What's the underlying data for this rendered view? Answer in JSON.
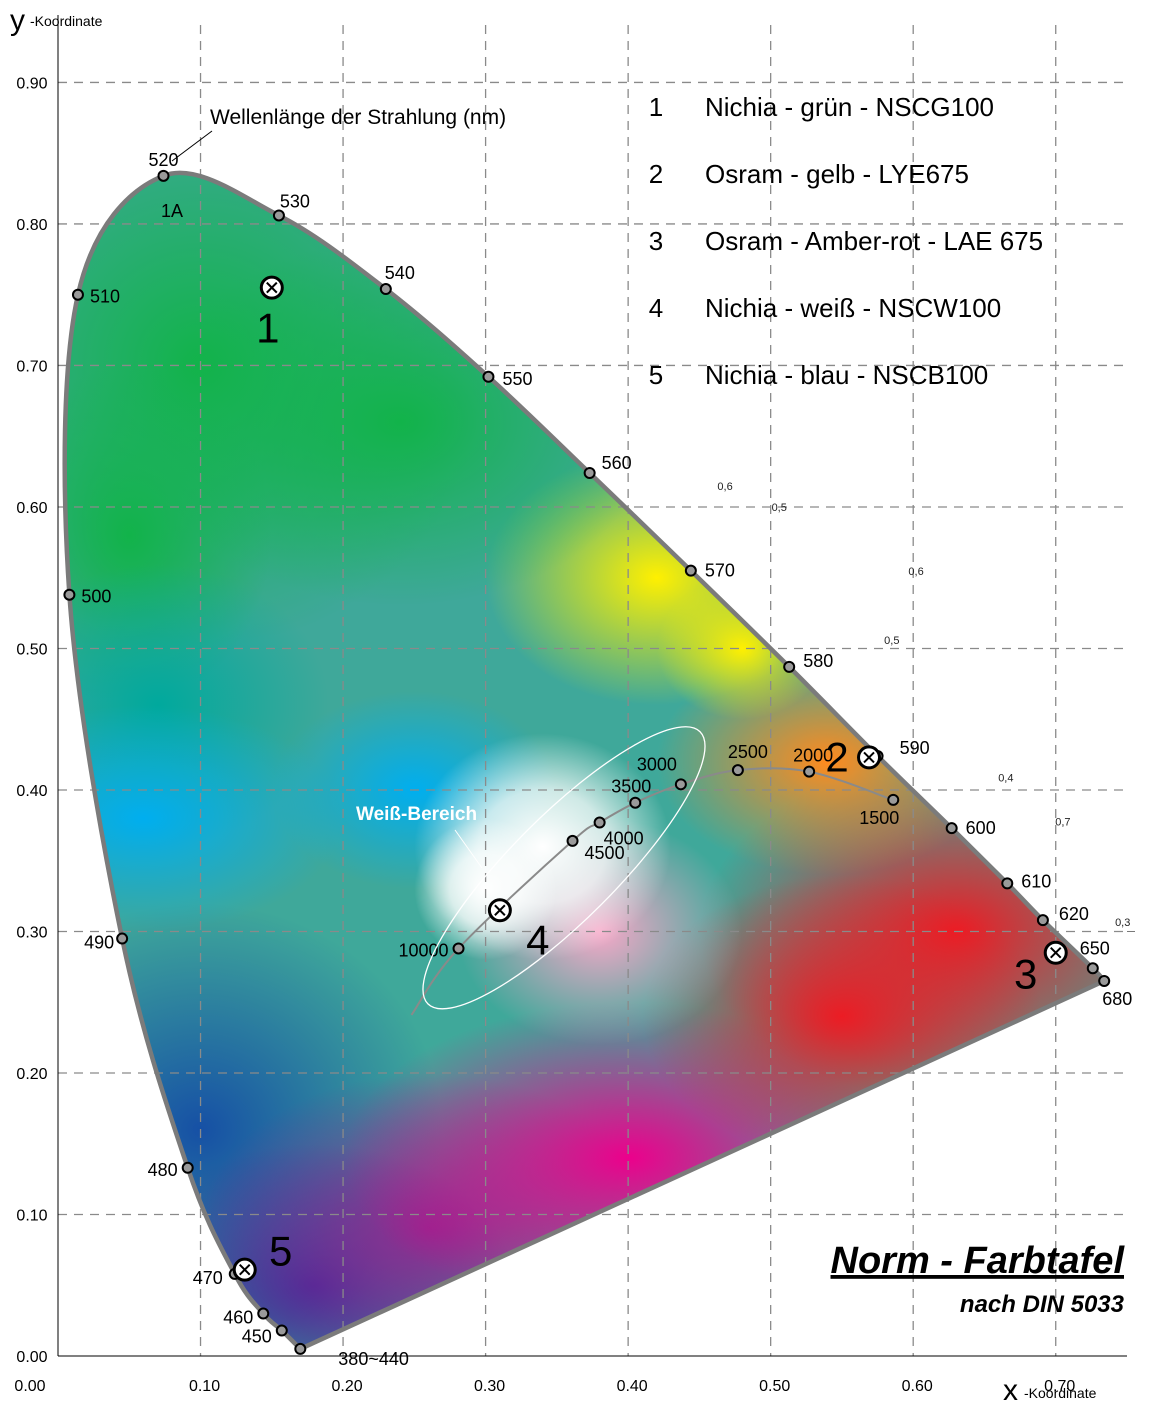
{
  "chart_data": {
    "type": "scatter",
    "title": "Norm - Farbtafel",
    "subtitle": "nach DIN 5033",
    "xlabel": {
      "big": "x",
      "small": "-Koordinate"
    },
    "ylabel": {
      "big": "y",
      "small": "-Koordinate"
    },
    "xlim": [
      0.0,
      0.75
    ],
    "ylim": [
      0.0,
      0.93
    ],
    "x_ticks": [
      "0.00",
      "0.10",
      "0.20",
      "0.30",
      "0.40",
      "0.50",
      "0.60",
      "0.70"
    ],
    "y_ticks": [
      "0.00",
      "0.10",
      "0.20",
      "0.30",
      "0.40",
      "0.50",
      "0.60",
      "0.70",
      "0.80",
      "0.90"
    ],
    "grid": true,
    "spectral_locus_annotation": "Wellenlänge der Strahlung (nm)",
    "spectral_locus": [
      {
        "label": "380~440",
        "x": 0.17,
        "y": 0.005
      },
      {
        "label": "450",
        "x": 0.157,
        "y": 0.018
      },
      {
        "label": "460",
        "x": 0.144,
        "y": 0.03
      },
      {
        "label": "470",
        "x": 0.124,
        "y": 0.058
      },
      {
        "label": "480",
        "x": 0.091,
        "y": 0.133
      },
      {
        "label": "490",
        "x": 0.045,
        "y": 0.295
      },
      {
        "label": "500",
        "x": 0.008,
        "y": 0.538
      },
      {
        "label": "510",
        "x": 0.014,
        "y": 0.75
      },
      {
        "label": "520",
        "x": 0.074,
        "y": 0.834
      },
      {
        "label": "530",
        "x": 0.155,
        "y": 0.806
      },
      {
        "label": "540",
        "x": 0.23,
        "y": 0.754
      },
      {
        "label": "550",
        "x": 0.302,
        "y": 0.692
      },
      {
        "label": "560",
        "x": 0.373,
        "y": 0.624
      },
      {
        "label": "570",
        "x": 0.444,
        "y": 0.555
      },
      {
        "label": "580",
        "x": 0.513,
        "y": 0.487
      },
      {
        "label": "590",
        "x": 0.575,
        "y": 0.424
      },
      {
        "label": "600",
        "x": 0.627,
        "y": 0.373
      },
      {
        "label": "610",
        "x": 0.666,
        "y": 0.334
      },
      {
        "label": "620",
        "x": 0.691,
        "y": 0.308
      },
      {
        "label": "650",
        "x": 0.726,
        "y": 0.274
      },
      {
        "label": "680",
        "x": 0.734,
        "y": 0.265
      }
    ],
    "planckian_locus": [
      {
        "label": "10000",
        "x": 0.281,
        "y": 0.288
      },
      {
        "label": "4500",
        "x": 0.361,
        "y": 0.364
      },
      {
        "label": "4000",
        "x": 0.38,
        "y": 0.377
      },
      {
        "label": "3500",
        "x": 0.405,
        "y": 0.391
      },
      {
        "label": "3000",
        "x": 0.437,
        "y": 0.404
      },
      {
        "label": "2500",
        "x": 0.477,
        "y": 0.414
      },
      {
        "label": "2000",
        "x": 0.527,
        "y": 0.413
      },
      {
        "label": "1500",
        "x": 0.586,
        "y": 0.393
      }
    ],
    "white_region": {
      "label": "Weiß-Bereich",
      "cx": 0.355,
      "cy": 0.345,
      "rx": 0.135,
      "ry": 0.037,
      "angle_deg": 45
    },
    "led_points": [
      {
        "label": "1",
        "x": 0.15,
        "y": 0.755
      },
      {
        "label": "2",
        "x": 0.569,
        "y": 0.423
      },
      {
        "label": "3",
        "x": 0.7,
        "y": 0.285
      },
      {
        "label": "4",
        "x": 0.31,
        "y": 0.315
      },
      {
        "label": "5",
        "x": 0.131,
        "y": 0.061
      }
    ],
    "extra_labels": [
      {
        "text": "1A",
        "x": 0.08,
        "y": 0.805
      },
      {
        "text": "0,6",
        "x": 0.468,
        "y": 0.612
      },
      {
        "text": "0,5",
        "x": 0.506,
        "y": 0.597
      },
      {
        "text": "0,6",
        "x": 0.602,
        "y": 0.552
      },
      {
        "text": "0,5",
        "x": 0.585,
        "y": 0.503
      },
      {
        "text": "0,4",
        "x": 0.665,
        "y": 0.406
      },
      {
        "text": "0,7",
        "x": 0.705,
        "y": 0.375
      },
      {
        "text": "0,3",
        "x": 0.747,
        "y": 0.304
      }
    ],
    "legend": [
      {
        "num": "1",
        "text": "Nichia - grün - NSCG100"
      },
      {
        "num": "2",
        "text": "Osram - gelb - LYE675"
      },
      {
        "num": "3",
        "text": "Osram - Amber-rot - LAE 675"
      },
      {
        "num": "4",
        "text": "Nichia - weiß - NSCW100"
      },
      {
        "num": "5",
        "text": "Nichia - blau - NSCB100"
      }
    ],
    "legend_placement": "top-right"
  }
}
